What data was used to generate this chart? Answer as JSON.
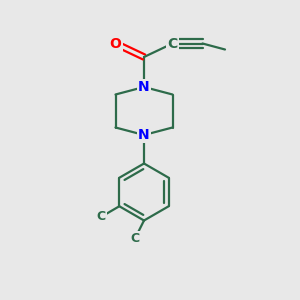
{
  "bg_color": "#e8e8e8",
  "bond_color": "#2d6b4a",
  "N_color": "#0000ff",
  "O_color": "#ff0000",
  "line_width": 1.6,
  "font_size": 10,
  "fig_size": [
    3.0,
    3.0
  ],
  "dpi": 100,
  "xlim": [
    0,
    10
  ],
  "ylim": [
    0,
    10
  ]
}
